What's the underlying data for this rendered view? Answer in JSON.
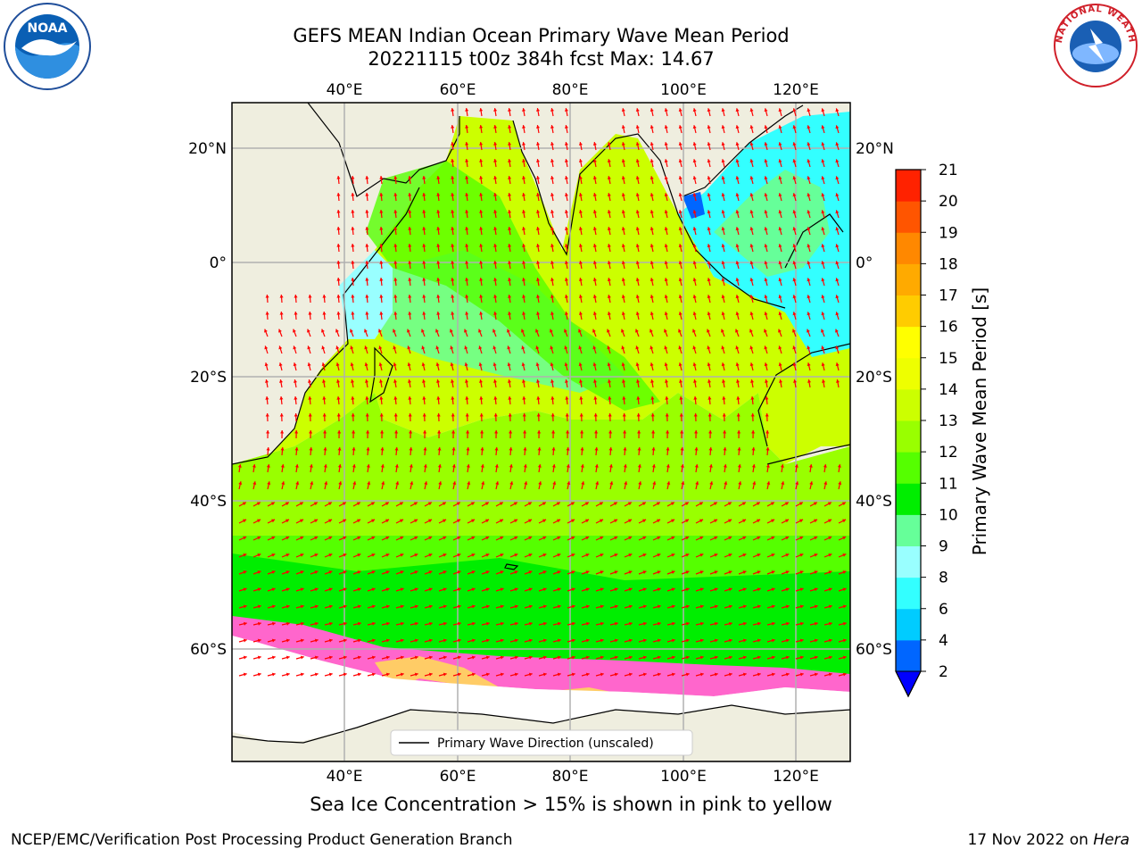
{
  "header": {
    "title_line1": "GEFS MEAN Indian Ocean Primary Wave Mean Period",
    "title_line2": "20221115 t00z 384h fcst   Max: 14.67"
  },
  "logos": {
    "left": {
      "icon": "noaa-logo-icon",
      "text": "NOAA"
    },
    "right": {
      "icon": "nws-logo-icon",
      "text": "NATIONAL WEATHER SERVICE"
    }
  },
  "map": {
    "lon_ticks": [
      "40°E",
      "60°E",
      "80°E",
      "100°E",
      "120°E"
    ],
    "lat_ticks": [
      "20°N",
      "0°",
      "20°S",
      "40°S",
      "60°S"
    ],
    "legend_label": "Primary Wave Direction (unscaled)",
    "colors": {
      "land": "#efeedf",
      "ice": "#ff66cc",
      "arrow": "#ff0000",
      "grid": "#b0b0b0"
    }
  },
  "colorbar": {
    "label": "Primary Wave Mean Period [s]",
    "levels": [
      "2",
      "4",
      "6",
      "8",
      "9",
      "10",
      "11",
      "12",
      "13",
      "14",
      "15",
      "16",
      "17",
      "18",
      "19",
      "20",
      "21"
    ],
    "colors": [
      "#0066ff",
      "#00ccff",
      "#33ffff",
      "#99ffff",
      "#66ff99",
      "#00ee00",
      "#55ff00",
      "#99ff00",
      "#ccff00",
      "#eeff00",
      "#ffff00",
      "#ffcc00",
      "#ffaa00",
      "#ff8800",
      "#ff5500",
      "#ff2200"
    ],
    "extend_color": "#0000ff"
  },
  "subtitle": "Sea Ice Concentration > 15% is shown in pink to yellow",
  "footer": {
    "left": "NCEP/EMC/Verification Post Processing Product Generation Branch",
    "right_prefix": "17 Nov 2022 on ",
    "right_machine": "Hera"
  }
}
